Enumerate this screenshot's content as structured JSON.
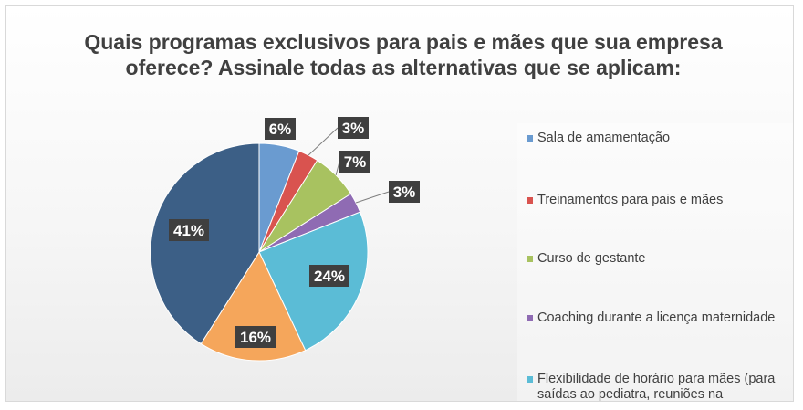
{
  "chart_data": {
    "type": "pie",
    "title": "Quais programas exclusivos para pais e mães que sua empresa oferece? Assinale todas as alternativas que se aplicam:",
    "slices": [
      {
        "label": "Sala de amamentação",
        "value": 6,
        "display": "6%",
        "color": "#6a9bd0"
      },
      {
        "label": "Treinamentos para pais e mães",
        "value": 3,
        "display": "3%",
        "color": "#d9534f"
      },
      {
        "label": "Curso de gestante",
        "value": 7,
        "display": "7%",
        "color": "#a8c260"
      },
      {
        "label": "Coaching durante a licença maternidade",
        "value": 3,
        "display": "3%",
        "color": "#8f6bb3"
      },
      {
        "label": "Flexibilidade de horário para mães (para saídas ao pediatra, reuniões na",
        "value": 24,
        "display": "24%",
        "color": "#5bbcd6"
      },
      {
        "value": 16,
        "display": "16%",
        "color": "#f5a65b"
      },
      {
        "value": 41,
        "display": "41%",
        "color": "#3c5f86"
      }
    ],
    "legend_position": "right",
    "data_label_style": {
      "background": "#3f3f3f",
      "text": "#ffffff"
    }
  }
}
